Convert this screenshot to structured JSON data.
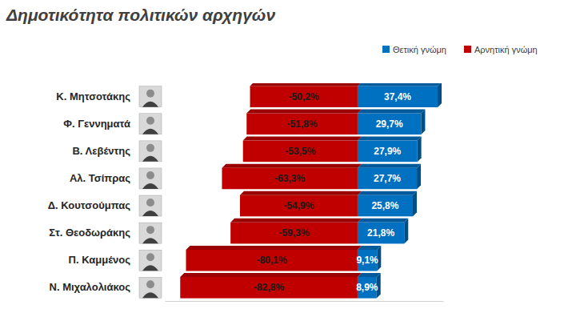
{
  "chart_data": {
    "type": "bar",
    "title": "Δημοτικότητα πολιτικών αρχηγών",
    "orientation": "horizontal",
    "stacked": true,
    "data_labels": true,
    "tick_labels": "y",
    "legend": "top-right",
    "categories": [
      "Κ. Μητσοτάκης",
      "Φ. Γεννηματά",
      "Β. Λεβέντης",
      "Αλ. Τσίπρας",
      "Δ. Κουτσούμπας",
      "Στ. Θεοδωράκης",
      "Π. Καμμένος",
      "Ν. Μιχαλολιάκος"
    ],
    "series": [
      {
        "name": "Θετική γνώμη",
        "color": "#0070c0",
        "values": [
          37.4,
          29.7,
          27.9,
          27.7,
          25.8,
          21.8,
          9.1,
          8.9
        ],
        "value_labels": [
          "37,4%",
          "29,7%",
          "27,9%",
          "27,7%",
          "25,8%",
          "21,8%",
          "9,1%",
          "8,9%"
        ]
      },
      {
        "name": "Αρνητική γνώμη",
        "color": "#c00000",
        "values": [
          -50.2,
          -51.8,
          -53.5,
          -63.3,
          -54.9,
          -59.3,
          -80.1,
          -82.8
        ],
        "value_labels": [
          "-50,2%",
          "-51,8%",
          "-53,5%",
          "-63,3%",
          "-54,9%",
          "-59,3%",
          "-80,1%",
          "-82,8%"
        ]
      }
    ],
    "xlim": [
      -90,
      40
    ],
    "xticks": []
  }
}
